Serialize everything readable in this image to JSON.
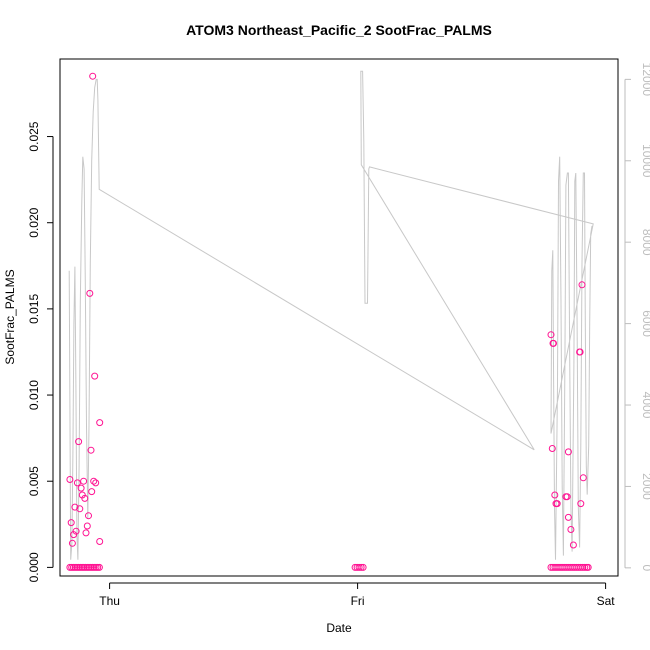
{
  "chart_data": {
    "type": "scatter",
    "title": "ATOM3 Northeast_Pacific_2 SootFrac_PALMS",
    "xlabel": "Date",
    "ylabel": "SootFrac_PALMS",
    "x_ticks": [
      {
        "value": 1.0,
        "label": "Thu"
      },
      {
        "value": 2.0,
        "label": "Fri"
      },
      {
        "value": 3.0,
        "label": "Sat"
      }
    ],
    "xlim": [
      0.8,
      3.05
    ],
    "ylim": [
      -0.0005,
      0.0295
    ],
    "y_ticks": [
      0.0,
      0.005,
      0.01,
      0.015,
      0.02,
      0.025
    ],
    "y_tick_labels": [
      "0.000",
      "0.005",
      "0.010",
      "0.015",
      "0.020",
      "0.025"
    ],
    "y2lim": [
      -200,
      12500
    ],
    "y2_ticks": [
      0,
      2000,
      4000,
      6000,
      8000,
      10000,
      12000
    ],
    "y2_tick_labels": [
      "0",
      "2000",
      "4000",
      "6000",
      "8000",
      "10000",
      "12000"
    ],
    "grid": false,
    "colors": {
      "points": "#ff1493",
      "secondary_line": "#c8c8c8",
      "right_axis": "#bdbdbd"
    },
    "series": [
      {
        "type": "scatter",
        "axis": "left",
        "points": [
          [
            0.84,
            0.0051
          ],
          [
            0.845,
            0.0026
          ],
          [
            0.85,
            0.0014
          ],
          [
            0.855,
            0.0019
          ],
          [
            0.86,
            0.0035
          ],
          [
            0.865,
            0.0021
          ],
          [
            0.87,
            0.0049
          ],
          [
            0.875,
            0.0073
          ],
          [
            0.88,
            0.0034
          ],
          [
            0.885,
            0.0046
          ],
          [
            0.89,
            0.0042
          ],
          [
            0.895,
            0.005
          ],
          [
            0.9,
            0.004
          ],
          [
            0.905,
            0.002
          ],
          [
            0.91,
            0.0024
          ],
          [
            0.915,
            0.003
          ],
          [
            0.92,
            0.0159
          ],
          [
            0.925,
            0.0068
          ],
          [
            0.928,
            0.0044
          ],
          [
            0.932,
            0.0285
          ],
          [
            0.936,
            0.005
          ],
          [
            0.94,
            0.0111
          ],
          [
            0.944,
            0.0049
          ],
          [
            0.96,
            0.0084
          ],
          [
            0.96,
            0.0015
          ],
          [
            0.84,
            0.0
          ],
          [
            0.847,
            0.0
          ],
          [
            0.854,
            0.0
          ],
          [
            0.861,
            0.0
          ],
          [
            0.868,
            0.0
          ],
          [
            0.875,
            0.0
          ],
          [
            0.882,
            0.0
          ],
          [
            0.889,
            0.0
          ],
          [
            0.896,
            0.0
          ],
          [
            0.903,
            0.0
          ],
          [
            0.91,
            0.0
          ],
          [
            0.917,
            0.0
          ],
          [
            0.924,
            0.0
          ],
          [
            0.931,
            0.0
          ],
          [
            0.938,
            0.0
          ],
          [
            0.945,
            0.0
          ],
          [
            0.952,
            0.0
          ],
          [
            0.959,
            0.0
          ],
          [
            1.99,
            0.0
          ],
          [
            1.998,
            0.0
          ],
          [
            2.006,
            0.0
          ],
          [
            2.014,
            0.0
          ],
          [
            2.022,
            0.0
          ],
          [
            2.78,
            0.0135
          ],
          [
            2.785,
            0.0069
          ],
          [
            2.788,
            0.013
          ],
          [
            2.79,
            0.013
          ],
          [
            2.795,
            0.0042
          ],
          [
            2.8,
            0.0037
          ],
          [
            2.805,
            0.0037
          ],
          [
            2.84,
            0.0041
          ],
          [
            2.845,
            0.0041
          ],
          [
            2.85,
            0.0067
          ],
          [
            2.85,
            0.0029
          ],
          [
            2.86,
            0.0022
          ],
          [
            2.87,
            0.0013
          ],
          [
            2.895,
            0.0125
          ],
          [
            2.897,
            0.0125
          ],
          [
            2.9,
            0.0037
          ],
          [
            2.905,
            0.0164
          ],
          [
            2.91,
            0.0052
          ],
          [
            2.78,
            0.0
          ],
          [
            2.788,
            0.0
          ],
          [
            2.796,
            0.0
          ],
          [
            2.804,
            0.0
          ],
          [
            2.812,
            0.0
          ],
          [
            2.82,
            0.0
          ],
          [
            2.828,
            0.0
          ],
          [
            2.836,
            0.0
          ],
          [
            2.844,
            0.0
          ],
          [
            2.852,
            0.0
          ],
          [
            2.86,
            0.0
          ],
          [
            2.868,
            0.0
          ],
          [
            2.876,
            0.0
          ],
          [
            2.884,
            0.0
          ],
          [
            2.892,
            0.0
          ],
          [
            2.9,
            0.0
          ],
          [
            2.908,
            0.0
          ],
          [
            2.916,
            0.0
          ],
          [
            2.924,
            0.0
          ],
          [
            2.93,
            0.0
          ]
        ]
      },
      {
        "type": "line",
        "axis": "right",
        "points": [
          [
            0.837,
            7300
          ],
          [
            0.84,
            4000
          ],
          [
            0.843,
            200
          ],
          [
            0.848,
            600
          ],
          [
            0.852,
            2800
          ],
          [
            0.856,
            6000
          ],
          [
            0.86,
            7400
          ],
          [
            0.864,
            4500
          ],
          [
            0.868,
            800
          ],
          [
            0.872,
            200
          ],
          [
            0.877,
            2500
          ],
          [
            0.882,
            6500
          ],
          [
            0.888,
            9000
          ],
          [
            0.892,
            10100
          ],
          [
            0.897,
            9800
          ],
          [
            0.902,
            7000
          ],
          [
            0.907,
            3500
          ],
          [
            0.912,
            1200
          ],
          [
            0.917,
            3500
          ],
          [
            0.922,
            7500
          ],
          [
            0.928,
            10000
          ],
          [
            0.934,
            11200
          ],
          [
            0.94,
            11800
          ],
          [
            0.946,
            12000
          ],
          [
            0.95,
            12000
          ],
          [
            0.953,
            11500
          ],
          [
            0.958,
            9300
          ],
          [
            2.712,
            2900
          ],
          [
            2.015,
            9900
          ],
          [
            2.013,
            12200
          ],
          [
            2.02,
            12200
          ],
          [
            2.025,
            10500
          ],
          [
            2.03,
            6500
          ],
          [
            2.035,
            6500
          ],
          [
            2.04,
            6500
          ],
          [
            2.045,
            9800
          ],
          [
            2.048,
            9850
          ],
          [
            2.95,
            8450
          ],
          [
            2.95,
            8450
          ],
          [
            2.78,
            3300
          ],
          [
            2.783,
            7300
          ],
          [
            2.787,
            7800
          ],
          [
            2.79,
            5000
          ],
          [
            2.794,
            1500
          ],
          [
            2.798,
            200
          ],
          [
            2.806,
            4500
          ],
          [
            2.81,
            9500
          ],
          [
            2.815,
            10100
          ],
          [
            2.82,
            6500
          ],
          [
            2.825,
            2000
          ],
          [
            2.83,
            300
          ],
          [
            2.836,
            5000
          ],
          [
            2.84,
            9400
          ],
          [
            2.846,
            9700
          ],
          [
            2.85,
            9700
          ],
          [
            2.855,
            5500
          ],
          [
            2.86,
            1500
          ],
          [
            2.865,
            400
          ],
          [
            2.872,
            5000
          ],
          [
            2.876,
            9500
          ],
          [
            2.88,
            9700
          ],
          [
            2.885,
            6000
          ],
          [
            2.89,
            1500
          ],
          [
            2.895,
            500
          ],
          [
            2.9,
            3000
          ],
          [
            2.905,
            7500
          ],
          [
            2.91,
            9700
          ],
          [
            2.915,
            9700
          ],
          [
            2.918,
            6000
          ],
          [
            2.922,
            2500
          ],
          [
            2.926,
            1800
          ],
          [
            2.932,
            3000
          ],
          [
            2.936,
            6000
          ],
          [
            2.94,
            8200
          ],
          [
            2.945,
            8400
          ]
        ]
      }
    ]
  }
}
